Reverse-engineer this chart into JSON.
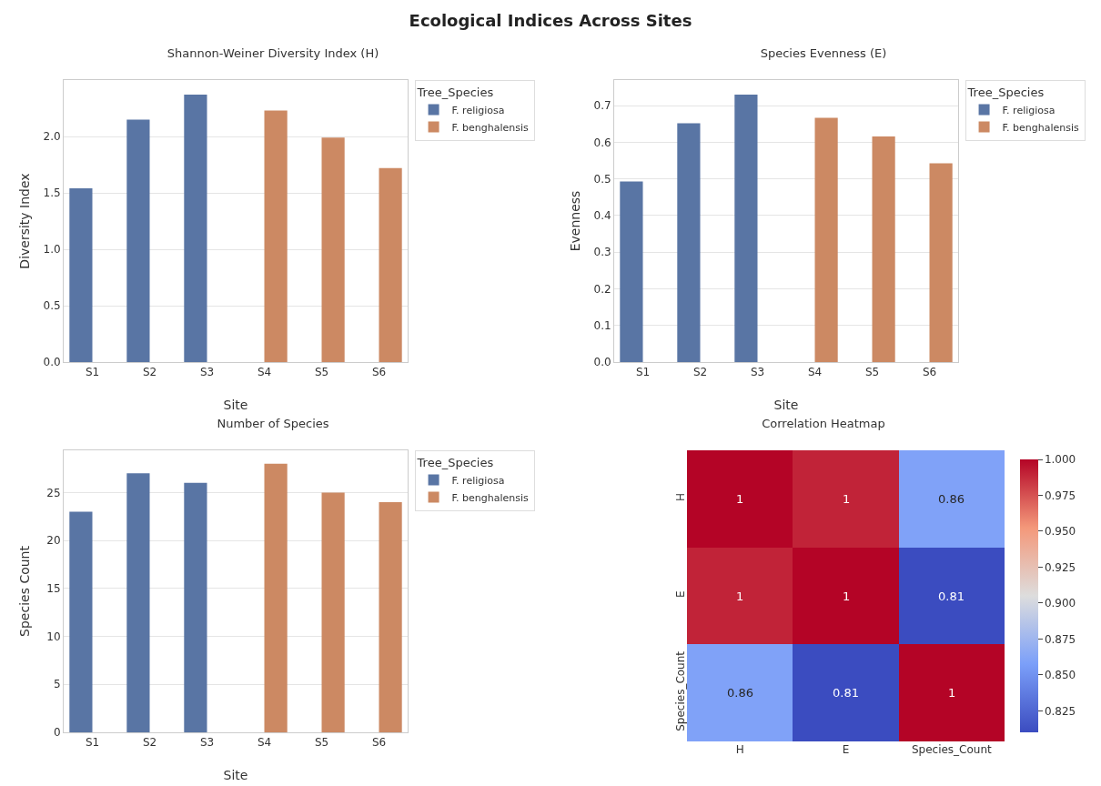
{
  "chart_data": [
    {
      "type": "bar",
      "title": "Shannon-Weiner Diversity Index (H)",
      "annotations": [
        "Ecological Indices Across Sites"
      ],
      "xlabel": "Site",
      "ylabel": "Diversity Index",
      "legend_title": "Tree_Species",
      "categories": [
        "S1",
        "S2",
        "S3",
        "S4",
        "S5",
        "S6"
      ],
      "series": [
        {
          "name": "F. religiosa",
          "color": "#5975a4",
          "values": [
            1.54,
            2.15,
            2.37,
            null,
            null,
            null
          ]
        },
        {
          "name": "F. benghalensis",
          "color": "#cc8963",
          "values": [
            null,
            null,
            null,
            2.23,
            1.99,
            1.72
          ]
        }
      ],
      "ylim": [
        0,
        2.5
      ],
      "yticks": [
        {
          "value": 0,
          "label": "0.0"
        },
        {
          "value": 0.5,
          "label": "0.5"
        },
        {
          "value": 1,
          "label": "1.0"
        },
        {
          "value": 1.5,
          "label": "1.5"
        },
        {
          "value": 2,
          "label": "2.0"
        }
      ],
      "grid": "y",
      "legend": "top right"
    },
    {
      "type": "bar",
      "title": "Species Evenness (E)",
      "xlabel": "Site",
      "ylabel": "Evenness",
      "legend_title": "Tree_Species",
      "categories": [
        "S1",
        "S2",
        "S3",
        "S4",
        "S5",
        "S6"
      ],
      "series": [
        {
          "name": "F. religiosa",
          "color": "#5975a4",
          "values": [
            0.493,
            0.652,
            0.73,
            null,
            null,
            null
          ]
        },
        {
          "name": "F. benghalensis",
          "color": "#cc8963",
          "values": [
            null,
            null,
            null,
            0.667,
            0.616,
            0.543
          ]
        }
      ],
      "ylim": [
        0,
        0.77
      ],
      "yticks": [
        {
          "value": 0,
          "label": "0.0"
        },
        0.1,
        0.2,
        0.3,
        0.4,
        0.5,
        0.6,
        0.7
      ],
      "grid": "y",
      "legend": "top right"
    },
    {
      "type": "bar",
      "title": "Number of Species",
      "xlabel": "Site",
      "ylabel": "Species Count",
      "legend_title": "Tree_Species",
      "categories": [
        "S1",
        "S2",
        "S3",
        "S4",
        "S5",
        "S6"
      ],
      "series": [
        {
          "name": "F. religiosa",
          "color": "#5975a4",
          "values": [
            23,
            27,
            26,
            null,
            null,
            null
          ]
        },
        {
          "name": "F. benghalensis",
          "color": "#cc8963",
          "values": [
            null,
            null,
            null,
            28,
            25,
            24
          ]
        }
      ],
      "ylim": [
        0,
        29.4
      ],
      "yticks": [
        0,
        5,
        10,
        15,
        20,
        25
      ],
      "grid": "y",
      "legend": "top right"
    },
    {
      "type": "heatmap",
      "title": "Correlation Heatmap",
      "categories": [
        "H",
        "E",
        "Species_Count"
      ],
      "y_categories": [
        "H",
        "E",
        "Species_Count"
      ],
      "cells": [
        [
          1,
          0.99,
          0.86
        ],
        [
          0.99,
          1,
          0.81
        ],
        [
          0.86,
          0.81,
          1
        ]
      ],
      "cell_labels": [
        [
          "1",
          "1",
          "0.86"
        ],
        [
          "1",
          "1",
          "0.81"
        ],
        [
          "0.86",
          "0.81",
          "1"
        ]
      ],
      "clim": [
        0.81,
        1
      ],
      "cticks": [
        {
          "value": 0.825,
          "label": "0.825"
        },
        {
          "value": 0.85,
          "label": "0.850"
        },
        {
          "value": 0.875,
          "label": "0.875"
        },
        {
          "value": 0.9,
          "label": "0.900"
        },
        {
          "value": 0.925,
          "label": "0.925"
        },
        {
          "value": 0.95,
          "label": "0.950"
        },
        {
          "value": 0.975,
          "label": "0.975"
        },
        {
          "value": 1,
          "label": "1.000"
        }
      ]
    }
  ]
}
